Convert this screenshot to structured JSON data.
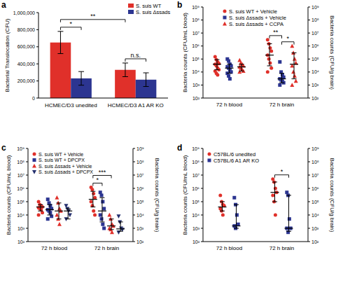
{
  "chart_data": [
    {
      "type": "bar",
      "title": "a",
      "categories": [
        "HCMEC/D3 unedited",
        "HCMEC/D3 A1 AR KO"
      ],
      "series": [
        {
          "name": "S. suis WT",
          "color": "#e0302a",
          "values": [
            650000,
            330000
          ],
          "errors": [
            130000,
            80000
          ]
        },
        {
          "name": "S. suis Δssads",
          "color": "#2c3591",
          "values": [
            230000,
            215000
          ],
          "errors": [
            80000,
            80000
          ]
        }
      ],
      "y_label": "Bacterial Translocation (CFU)",
      "ylim": [
        0,
        1000000
      ],
      "yticks": [
        0,
        {
          "value": 200000,
          "label": "200,000"
        },
        {
          "value": 400000,
          "label": "400,000"
        },
        {
          "value": 600000,
          "label": "600,000"
        },
        {
          "value": 800000,
          "label": "800,000"
        },
        {
          "value": 1000000,
          "label": "1,000,000"
        }
      ],
      "grid": false,
      "legend": "top-right",
      "annotations": [
        {
          "text": "*",
          "from": [
            0,
            0
          ],
          "to": [
            0,
            1
          ]
        },
        {
          "text": "**",
          "from": [
            0,
            0
          ],
          "to": [
            1,
            0
          ]
        },
        {
          "text": "n.s.",
          "from": [
            1,
            0
          ],
          "to": [
            1,
            1
          ]
        }
      ]
    },
    {
      "type": "scatter",
      "title": "b",
      "categories": [
        "72 h blood",
        "72 h brain"
      ],
      "series": [
        {
          "name": "S. suis WT + Vehicle",
          "color": "#e0302a",
          "marker": "circle",
          "values": [
            [
              150000,
              90000,
              60000,
              45000,
              40000,
              30000,
              20000,
              15000,
              12000,
              8000,
              6000
            ],
            [
              3000000,
              1500000,
              700000,
              400000,
              200000,
              100000,
              50000,
              20000,
              10000
            ]
          ],
          "medians": [
            40000,
            200000
          ],
          "ranges": [
            [
              15000,
              90000
            ],
            [
              30000,
              1500000
            ]
          ]
        },
        {
          "name": "S. suis Δssads + Vehicle",
          "color": "#2c3591",
          "marker": "square",
          "values": [
            [
              100000,
              70000,
              40000,
              30000,
              25000,
              20000,
              15000,
              10000,
              8000,
              5000,
              3000
            ],
            [
              60000,
              10000,
              6000,
              4000,
              3000,
              2500,
              2000,
              1500,
              1000
            ]
          ],
          "medians": [
            20000,
            3000
          ],
          "ranges": [
            [
              8000,
              40000
            ],
            [
              1500,
              8000
            ]
          ]
        },
        {
          "name": "S. suis Δssads + CCPA",
          "color": "#e0302a",
          "marker": "triangle",
          "values": [
            [
              80000,
              50000,
              40000,
              30000,
              25000,
              20000,
              15000,
              12000,
              10000
            ],
            [
              1000000,
              300000,
              100000,
              50000,
              30000,
              10000,
              5000,
              2000,
              1000
            ]
          ],
          "medians": [
            25000,
            40000
          ],
          "ranges": [
            [
              12000,
              40000
            ],
            [
              3000,
              300000
            ]
          ]
        }
      ],
      "y_label": "Bacteria counts (CFU/mL blood)",
      "y2_label": "Bacteria counts (CFU/g brain)",
      "log": "y",
      "ylim": [
        100,
        1000000000
      ],
      "yticks": [
        {
          "value": 100,
          "label": "10²"
        },
        {
          "value": 1000,
          "label": "10³"
        },
        {
          "value": 10000,
          "label": "10⁴"
        },
        {
          "value": 100000,
          "label": "10⁵"
        },
        {
          "value": 1000000,
          "label": "10⁶"
        },
        {
          "value": 10000000,
          "label": "10⁷"
        },
        {
          "value": 100000000,
          "label": "10⁸"
        },
        {
          "value": 1000000000,
          "label": "10⁹"
        }
      ],
      "y2lim": [
        100,
        1000000000
      ],
      "y2ticks": [
        {
          "value": 100,
          "label": "10²"
        },
        {
          "value": 1000,
          "label": "10³"
        },
        {
          "value": 10000,
          "label": "10⁴"
        },
        {
          "value": 100000,
          "label": "10⁵"
        },
        {
          "value": 1000000,
          "label": "10⁶"
        },
        {
          "value": 10000000,
          "label": "10⁷"
        },
        {
          "value": 100000000,
          "label": "10⁸"
        },
        {
          "value": 1000000000,
          "label": "10⁹"
        }
      ],
      "grid": false,
      "legend": "top-left",
      "annotations": [
        {
          "text": "**",
          "from": [
            1,
            0
          ],
          "to": [
            1,
            1
          ]
        },
        {
          "text": "*",
          "from": [
            1,
            1
          ],
          "to": [
            1,
            2
          ]
        }
      ]
    },
    {
      "type": "scatter",
      "title": "c",
      "categories": [
        "72 h blood",
        "72 h brain"
      ],
      "series": [
        {
          "name": "S. suis WT + Vehicle",
          "color": "#e0302a",
          "marker": "circle",
          "values": [
            [
              100000,
              60000,
              50000,
              40000,
              35000,
              30000,
              25000,
              15000,
              10000
            ],
            [
              1200000,
              800000,
              400000,
              200000,
              100000,
              50000,
              20000,
              10000
            ]
          ],
          "medians": [
            40000,
            150000
          ],
          "ranges": [
            [
              20000,
              60000
            ],
            [
              40000,
              600000
            ]
          ]
        },
        {
          "name": "S. suis WT + DPCPX",
          "color": "#2c3591",
          "marker": "square",
          "values": [
            [
              150000,
              80000,
              50000,
              30000,
              25000,
              20000,
              15000,
              8000,
              5000
            ],
            [
              500000,
              300000,
              100000,
              30000,
              10000,
              5000,
              2000,
              1000
            ]
          ],
          "medians": [
            25000,
            20000
          ],
          "ranges": [
            [
              10000,
              60000
            ],
            [
              3000,
              200000
            ]
          ]
        },
        {
          "name": "S. suis Δssads + Vehicle",
          "color": "#e0302a",
          "marker": "triangle",
          "values": [
            [
              200000,
              80000,
              30000,
              20000,
              10000,
              5000,
              2000
            ],
            [
              10000,
              5000,
              2000,
              1500,
              1000,
              800,
              500
            ]
          ],
          "medians": [
            20000,
            1500
          ],
          "ranges": [
            [
              5000,
              80000
            ],
            [
              800,
              5000
            ]
          ]
        },
        {
          "name": "S. suis Δssads + DPCPX",
          "color": "#25306f",
          "marker": "triangle-down",
          "values": [
            [
              50000,
              30000,
              20000,
              10000,
              5000
            ],
            [
              8000,
              3000,
              1000,
              800,
              500
            ]
          ],
          "medians": [
            20000,
            900
          ],
          "ranges": [
            [
              5000,
              30000
            ],
            [
              600,
              3000
            ]
          ]
        }
      ],
      "y_label": "Bacteria counts (CFU/mL blood)",
      "y2_label": "Bacteria counts (CFU/g brain)",
      "log": "y",
      "ylim": [
        100,
        1000000000
      ],
      "yticks": [
        {
          "value": 100,
          "label": "10²"
        },
        {
          "value": 1000,
          "label": "10³"
        },
        {
          "value": 10000,
          "label": "10⁴"
        },
        {
          "value": 100000,
          "label": "10⁵"
        },
        {
          "value": 1000000,
          "label": "10⁶"
        },
        {
          "value": 10000000,
          "label": "10⁷"
        },
        {
          "value": 100000000,
          "label": "10⁸"
        },
        {
          "value": 1000000000,
          "label": "10⁹"
        }
      ],
      "y2lim": [
        100,
        1000000000
      ],
      "y2ticks": [
        {
          "value": 100,
          "label": "10²"
        },
        {
          "value": 1000,
          "label": "10³"
        },
        {
          "value": 10000,
          "label": "10⁴"
        },
        {
          "value": 100000,
          "label": "10⁵"
        },
        {
          "value": 1000000,
          "label": "10⁶"
        },
        {
          "value": 10000000,
          "label": "10⁷"
        },
        {
          "value": 100000000,
          "label": "10⁸"
        },
        {
          "value": 1000000000,
          "label": "10⁹"
        }
      ],
      "grid": false,
      "legend": "top-left",
      "annotations": [
        {
          "text": "*",
          "from": [
            1,
            0
          ],
          "to": [
            1,
            1
          ]
        },
        {
          "text": "***",
          "from": [
            1,
            0
          ],
          "to": [
            1,
            2
          ]
        }
      ]
    },
    {
      "type": "scatter",
      "title": "d",
      "categories": [
        "72 h blood",
        "72 h brain"
      ],
      "series": [
        {
          "name": "C57BL/6 unedited",
          "color": "#e0302a",
          "marker": "circle",
          "values": [
            [
              300000,
              100000,
              60000,
              50000,
              30000,
              20000,
              10000
            ],
            [
              5000000,
              3000000,
              1000000,
              500000,
              300000,
              100000,
              10000
            ]
          ],
          "medians": [
            40000,
            500000
          ],
          "ranges": [
            [
              20000,
              100000
            ],
            [
              100000,
              3000000
            ]
          ]
        },
        {
          "name": "C57BL/6 A1 AR KO",
          "color": "#2c3591",
          "marker": "square",
          "values": [
            [
              200000,
              60000,
              10000,
              2000,
              1500,
              1000
            ],
            [
              500000,
              300000,
              5000,
              1000,
              1000,
              500
            ]
          ],
          "medians": [
            1500,
            1000
          ],
          "ranges": [
            [
              1000,
              60000
            ],
            [
              600,
              300000
            ]
          ]
        }
      ],
      "y_label": "Bacteria counts (CFU/mL blood)",
      "y2_label": "Bacteria counts (CFU/g brain)",
      "log": "y",
      "ylim": [
        100,
        1000000000
      ],
      "yticks": [
        {
          "value": 100,
          "label": "10²"
        },
        {
          "value": 1000,
          "label": "10³"
        },
        {
          "value": 10000,
          "label": "10⁴"
        },
        {
          "value": 100000,
          "label": "10⁵"
        },
        {
          "value": 1000000,
          "label": "10⁶"
        },
        {
          "value": 10000000,
          "label": "10⁷"
        },
        {
          "value": 100000000,
          "label": "10⁸"
        },
        {
          "value": 1000000000,
          "label": "10⁹"
        }
      ],
      "y2lim": [
        100,
        1000000000
      ],
      "y2ticks": [
        {
          "value": 100,
          "label": "10²"
        },
        {
          "value": 1000,
          "label": "10³"
        },
        {
          "value": 10000,
          "label": "10⁴"
        },
        {
          "value": 100000,
          "label": "10⁵"
        },
        {
          "value": 1000000,
          "label": "10⁶"
        },
        {
          "value": 10000000,
          "label": "10⁷"
        },
        {
          "value": 100000000,
          "label": "10⁸"
        },
        {
          "value": 1000000000,
          "label": "10⁹"
        }
      ],
      "grid": false,
      "legend": "top-left",
      "annotations": [
        {
          "text": "*",
          "from": [
            1,
            0
          ],
          "to": [
            1,
            1
          ]
        }
      ]
    }
  ]
}
